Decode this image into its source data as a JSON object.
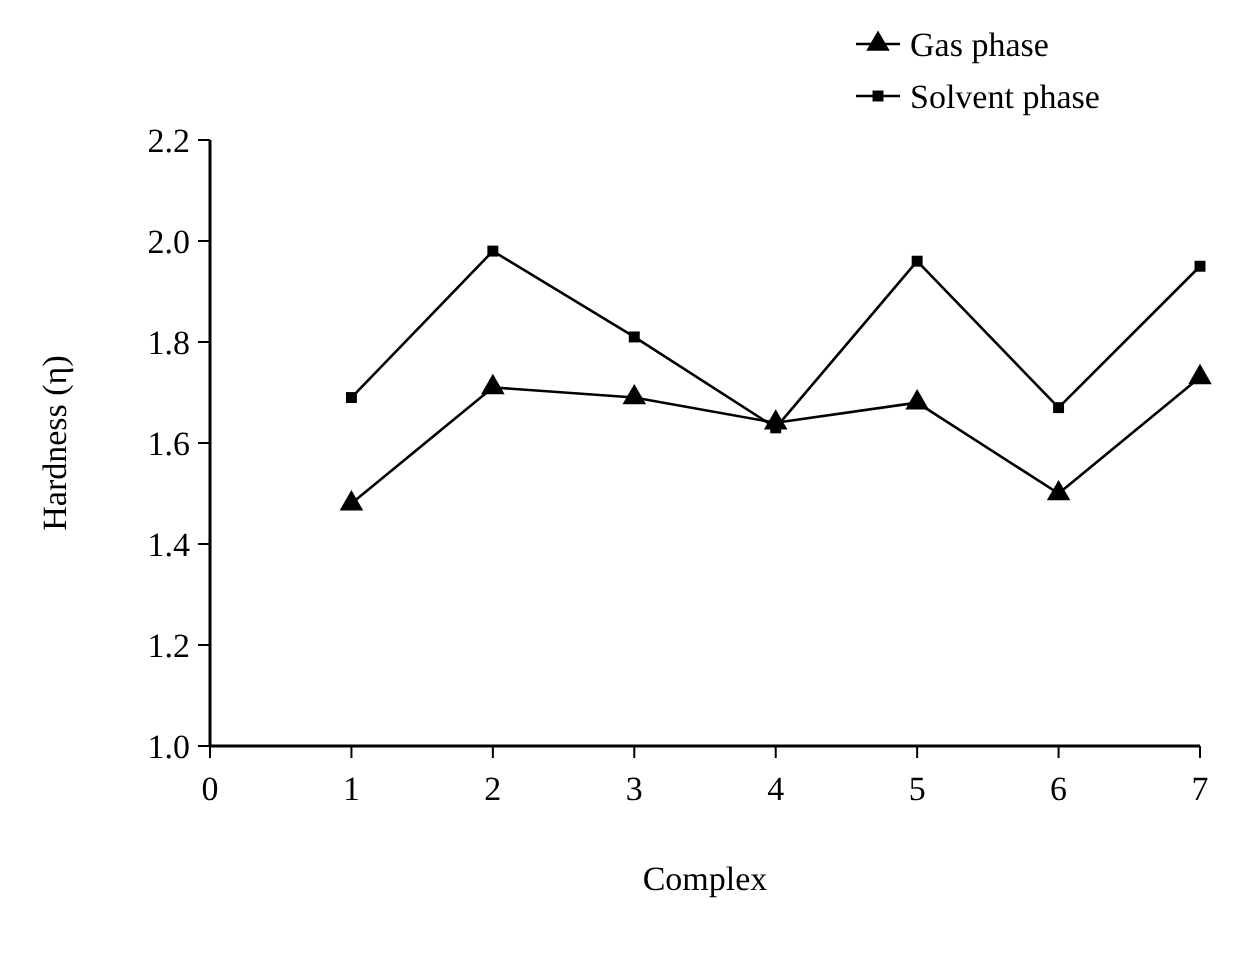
{
  "chart_data": {
    "type": "line",
    "xlabel": "Complex",
    "ylabel": "Hardness (η)",
    "x": [
      1,
      2,
      3,
      4,
      5,
      6,
      7
    ],
    "series": [
      {
        "name": "Gas phase",
        "color": "#000000",
        "marker": "triangle",
        "values": [
          1.48,
          1.71,
          1.69,
          1.64,
          1.68,
          1.5,
          1.73
        ]
      },
      {
        "name": "Solvent phase",
        "color": "#000000",
        "marker": "square",
        "values": [
          1.69,
          1.98,
          1.81,
          1.63,
          1.96,
          1.67,
          1.95
        ]
      }
    ],
    "xlim": [
      0,
      7
    ],
    "xticks": [
      0,
      1,
      2,
      3,
      4,
      5,
      6,
      7
    ],
    "ylim": [
      1.0,
      2.2
    ],
    "yticks": [
      {
        "value": 1.0,
        "label": "1.0"
      },
      {
        "value": 1.2,
        "label": "1.2"
      },
      {
        "value": 1.4,
        "label": "1.4"
      },
      {
        "value": 1.6,
        "label": "1.6"
      },
      {
        "value": 1.8,
        "label": "1.8"
      },
      {
        "value": 2.0,
        "label": "2.0"
      },
      {
        "value": 2.2,
        "label": "2.2"
      }
    ],
    "grid": false,
    "legend": "top right",
    "line_style": "solid"
  }
}
